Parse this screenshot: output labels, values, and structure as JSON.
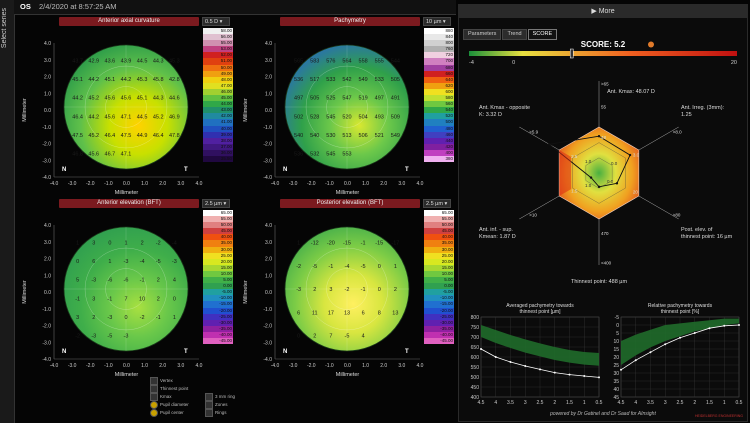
{
  "sidebar": {
    "label": "Select series"
  },
  "header": {
    "eye": "OS",
    "datetime": "2/4/2020 at 8:57:25 AM"
  },
  "maps": [
    {
      "title": "Anterior axial curvature",
      "step": "0.5 D",
      "legend": [
        "58.00",
        "56.00",
        "55.00",
        "53.00",
        "52.00",
        "51.00",
        "50.00",
        "49.00",
        "48.00",
        "47.00",
        "46.00",
        "45.00",
        "44.00",
        "43.00",
        "42.00",
        "41.00",
        "40.00",
        "39.00",
        "38.00",
        "37.00",
        "36.00",
        "35.50"
      ],
      "values": [
        "43.7",
        "42.9",
        "43.6",
        "43.9",
        "44.5",
        "44.3",
        "45.3",
        "45.1",
        "44.2",
        "45.1",
        "44.2",
        "45.3",
        "45.8",
        "42.8",
        "44.2",
        "45.2",
        "45.6",
        "45.6",
        "45.1",
        "44.3",
        "44.6",
        "46.4",
        "44.2",
        "45.6",
        "47.1",
        "44.5",
        "45.2",
        "46.9",
        "47.5",
        "45.2",
        "46.4",
        "47.5",
        "44.9",
        "46.4",
        "47.8",
        "46.8",
        "45.6",
        "46.7",
        "47.1"
      ],
      "orient": [
        "N",
        "T"
      ]
    },
    {
      "title": "Pachymetry",
      "step": "10 µm",
      "legend": [
        "880",
        "840",
        "800",
        "760",
        "720",
        "700",
        "680",
        "660",
        "640",
        "620",
        "600",
        "580",
        "560",
        "540",
        "520",
        "500",
        "480",
        "460",
        "440",
        "420",
        "400",
        "380"
      ],
      "values": [
        "565",
        "583",
        "576",
        "564",
        "558",
        "555",
        "544",
        "536",
        "517",
        "533",
        "542",
        "549",
        "533",
        "505",
        "497",
        "505",
        "525",
        "547",
        "519",
        "497",
        "491",
        "502",
        "528",
        "545",
        "520",
        "504",
        "493",
        "509",
        "540",
        "540",
        "530",
        "513",
        "506",
        "521",
        "549",
        "536",
        "532",
        "545",
        "553"
      ],
      "orient": [
        "N",
        "T"
      ]
    },
    {
      "title": "Anterior elevation (BFT)",
      "step": "2.5 µm",
      "legend": [
        "65.00",
        "55.00",
        "50.00",
        "45.00",
        "40.00",
        "35.00",
        "30.00",
        "25.00",
        "20.00",
        "15.00",
        "10.00",
        "5.00",
        "0.00",
        "-5.00",
        "-10.00",
        "-15.00",
        "-20.00",
        "-25.00",
        "-30.00",
        "-35.00",
        "-40.00",
        "-45.00"
      ],
      "values": [
        "1",
        "3",
        "0",
        "1",
        "2",
        "-2",
        "-4",
        "0",
        "6",
        "1",
        "-3",
        "-4",
        "-5",
        "-3",
        "5",
        "-3",
        "-6",
        "-6",
        "-1",
        "2",
        "4",
        "-1",
        "3",
        "-1",
        "7",
        "10",
        "2",
        "0",
        "3",
        "2",
        "-3",
        "0",
        "-2",
        "-1",
        "1",
        "-2",
        "-3",
        "-5",
        "-3"
      ],
      "orient": [
        "N",
        "T"
      ]
    },
    {
      "title": "Posterior elevation (BFT)",
      "step": "2.5 µm",
      "legend": [
        "65.00",
        "55.00",
        "50.00",
        "45.00",
        "40.00",
        "35.00",
        "30.00",
        "25.00",
        "20.00",
        "15.00",
        "10.00",
        "5.00",
        "0.00",
        "-5.00",
        "-10.00",
        "-15.00",
        "-20.00",
        "-25.00",
        "-30.00",
        "-35.00",
        "-40.00",
        "-45.00"
      ],
      "values": [
        "1",
        "-12",
        "-20",
        "-15",
        "-1",
        "-15",
        "-17",
        "-2",
        "-5",
        "-1",
        "-4",
        "-5",
        "0",
        "1",
        "-3",
        "2",
        "3",
        "-2",
        "-1",
        "0",
        "2",
        "6",
        "11",
        "17",
        "13",
        "6",
        "8",
        "13",
        "0",
        "2",
        "7",
        "-5",
        "4"
      ],
      "orient": [
        "N",
        "T"
      ]
    }
  ],
  "map_axes": {
    "xlabel": "Millimeter",
    "ylabel": "Millimeter",
    "xticks": [
      "-4.0",
      "-3.0",
      "-2.0",
      "-1.0",
      "0.0",
      "1.0",
      "2.0",
      "3.0",
      "4.0"
    ],
    "yticks": [
      "4.0",
      "3.0",
      "2.0",
      "1.0",
      "0.0",
      "-1.0",
      "-2.0",
      "-3.0",
      "-4.0"
    ]
  },
  "options": {
    "vertex": "Vertex",
    "thinnest": "Thinnest point",
    "kmax": "Kmax",
    "pupil_diameter": "Pupil diameter",
    "pupil_center": "Pupil center",
    "ring3": "3 mm ring",
    "zones": "Zones",
    "rings": "Rings"
  },
  "right": {
    "more_label": "More",
    "tabs": [
      "Parameters",
      "Trend",
      "SCORE"
    ],
    "score_label": "SCORE: 5.2",
    "score_value": 5.2,
    "score_scale": [
      "-4",
      "0",
      "20"
    ],
    "score_color": "#e07a2a",
    "radar_labels": {
      "kmax": "Ant. Kmax: 48.07 D",
      "irreg": "Ant. Irreg. (3mm): 1.25",
      "postelev": "Post. elev. of thinnest point: 16 µm",
      "thinnest": "Thinnest point: 488 µm",
      "kmean": "Ant. inf. - sup. Kmean: 1.87 D",
      "opposite": "Ant. Kmax - opposite K: 3.32 D"
    },
    "radar_ticks": {
      "kmax": [
        ">65",
        "55",
        "48"
      ],
      "irreg": [
        ">8.0",
        "3.0"
      ],
      "post": [
        ">80",
        "20"
      ],
      "thin": [
        "<400",
        "470"
      ],
      "kmean": [
        ">10",
        "1.5"
      ],
      "opp": [
        ">5.9",
        "2.5"
      ]
    },
    "radar_inner": [
      "1.0",
      "1.0",
      "0.0",
      "0.0"
    ],
    "footer": "powered by Dr Gatinel and Dr Saad for AInsight",
    "brand": "HEIDELBERG ENGINEERING"
  },
  "chart_data": [
    {
      "type": "line",
      "title": "Averaged pachymetry towards thinnest point [µm]",
      "x": [
        4.5,
        4.0,
        3.5,
        3.0,
        2.5,
        2.0,
        1.5,
        1.0,
        0.5
      ],
      "series": [
        {
          "values": [
            640,
            600,
            575,
            555,
            538,
            522,
            512,
            505,
            498
          ]
        }
      ],
      "band_upper": [
        760,
        735,
        710,
        688,
        668,
        650,
        635,
        625,
        620
      ],
      "band_lower": [
        700,
        670,
        645,
        622,
        603,
        585,
        572,
        562,
        556
      ],
      "yticks": [
        "800",
        "750",
        "700",
        "650",
        "600",
        "550",
        "500",
        "450",
        "400"
      ],
      "xticks": [
        "4.5",
        "4",
        "3.5",
        "3",
        "2.5",
        "2",
        "1.5",
        "1",
        "0.5"
      ],
      "ylim": [
        400,
        800
      ]
    },
    {
      "type": "line",
      "title": "Relative pachymetry towards thinnest point [%]",
      "x": [
        4.5,
        4.0,
        3.5,
        3.0,
        2.5,
        2.0,
        1.5,
        1.0,
        0.5
      ],
      "series": [
        {
          "values": [
            -28,
            -22,
            -17,
            -12,
            -8,
            -5,
            -2,
            -0.5,
            0
          ]
        }
      ],
      "band_upper": [
        -10,
        -6,
        -3,
        0,
        1,
        2,
        3,
        4,
        4
      ],
      "band_lower": [
        -25,
        -19,
        -14,
        -10,
        -7,
        -4,
        -2,
        0,
        1
      ],
      "yticks": [
        "-5",
        "0",
        "5",
        "10",
        "15",
        "20",
        "25",
        "30",
        "35",
        "40",
        "45"
      ],
      "xticks": [
        "4.5",
        "4",
        "3.5",
        "3",
        "2.5",
        "2",
        "1.5",
        "1",
        "0.5"
      ],
      "ylim": [
        -45,
        5
      ]
    }
  ]
}
